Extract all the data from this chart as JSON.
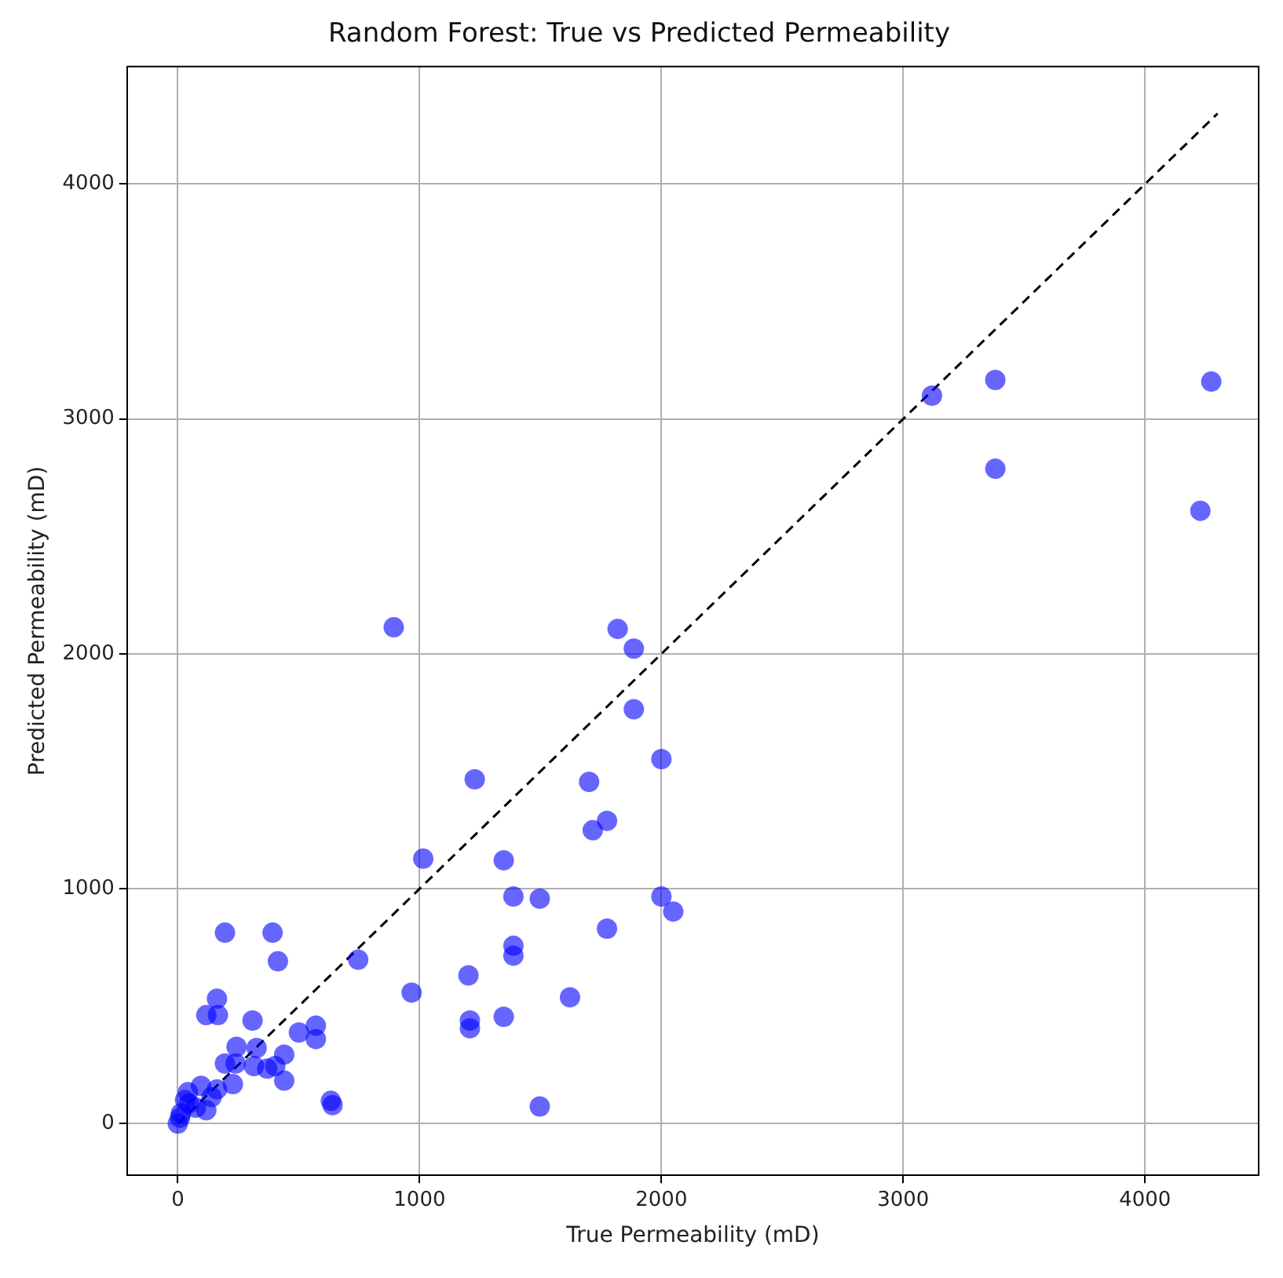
{
  "chart_data": {
    "type": "scatter",
    "title": "Random Forest: True vs Predicted Permeability",
    "xlabel": "True Permeability (mD)",
    "ylabel": "Predicted Permeability (mD)",
    "xlim": [
      -210,
      4470
    ],
    "ylim": [
      -220,
      4500
    ],
    "xticks": [
      0,
      1000,
      2000,
      3000,
      4000
    ],
    "yticks": [
      0,
      1000,
      2000,
      3000,
      4000
    ],
    "grid": true,
    "series": [
      {
        "color": "#0000ff",
        "marker": "circle",
        "x": [
          195,
          392,
          414,
          746,
          967,
          162,
          118,
          166,
          309,
          501,
          571,
          571,
          243,
          326,
          440,
          195,
          239,
          315,
          370,
          403,
          440,
          228,
          162,
          96,
          633,
          640,
          42,
          30,
          75,
          9,
          0,
          46,
          140,
          118,
          13,
          1886,
          1886,
          2000,
          1228,
          1701,
          1775,
          1716,
          1015,
          1348,
          1388,
          1497,
          2000,
          2049,
          1775,
          1388,
          1388,
          1202,
          1622,
          1348,
          1208,
          1208,
          1497,
          893,
          1819,
          3119,
          3381,
          3381,
          4274,
          4229
        ],
        "values": [
          813,
          813,
          691,
          698,
          558,
          532,
          462,
          462,
          439,
          388,
          417,
          360,
          327,
          322,
          294,
          256,
          256,
          245,
          234,
          245,
          183,
          168,
          146,
          161,
          97,
          79,
          134,
          101,
          68,
          25,
          0,
          86,
          113,
          57,
          44,
          2022,
          1764,
          1552,
          1466,
          1455,
          1289,
          1249,
          1128,
          1121,
          967,
          958,
          967,
          903,
          830,
          757,
          715,
          631,
          538,
          455,
          439,
          406,
          73,
          2113,
          2106,
          3099,
          3166,
          2788,
          3159,
          2609
        ]
      },
      {
        "type": "line",
        "color": "#000000",
        "line_style": "dashed",
        "marker": "none",
        "x": [
          0,
          4300
        ],
        "values": [
          0,
          4300
        ]
      }
    ]
  }
}
